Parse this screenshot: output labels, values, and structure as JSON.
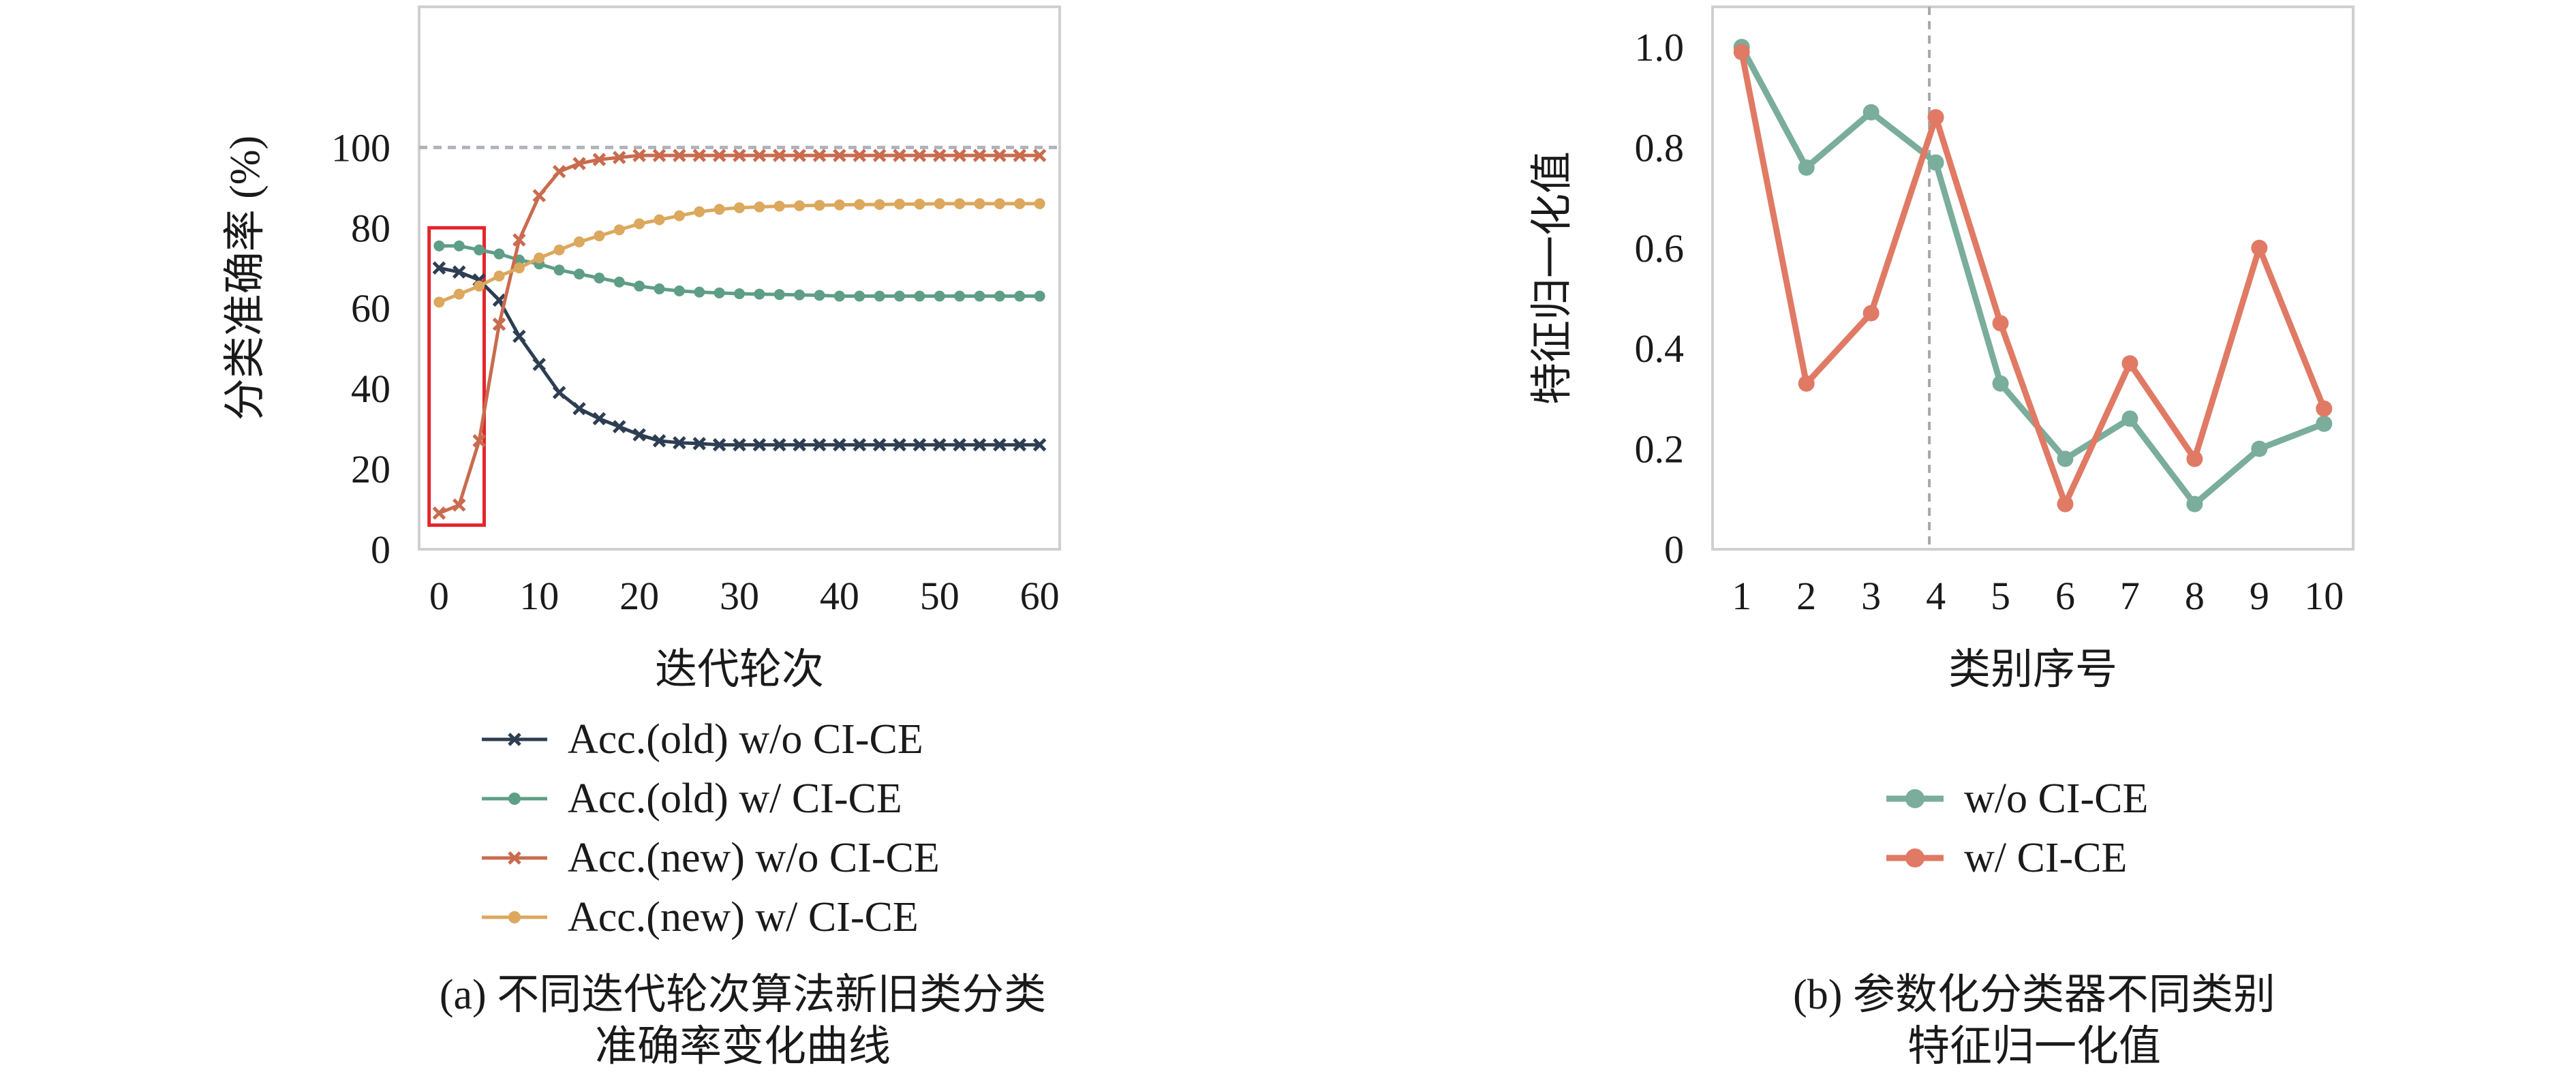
{
  "chart_data": [
    {
      "type": "line",
      "caption_lines": [
        "(a) 不同迭代轮次算法新旧类分类",
        "准确率变化曲线"
      ],
      "xlabel": "迭代轮次",
      "ylabel": "分类准确率 (%)",
      "xlim": [
        -2,
        62
      ],
      "ylim": [
        0,
        135
      ],
      "xticks": [
        0,
        10,
        20,
        30,
        40,
        50,
        60
      ],
      "yticks": [
        0,
        20,
        40,
        60,
        80,
        100
      ],
      "grid": false,
      "reference_line": {
        "y": 100,
        "style": "dashed",
        "color": "#b0b3bb"
      },
      "highlight_box": {
        "x": [
          -1,
          4.5
        ],
        "y": [
          6,
          80
        ],
        "color": "#e3262a"
      },
      "legend_position": "below",
      "x": [
        0,
        2,
        4,
        6,
        8,
        10,
        12,
        14,
        16,
        18,
        20,
        22,
        24,
        26,
        28,
        30,
        32,
        34,
        36,
        38,
        40,
        42,
        44,
        46,
        48,
        50,
        52,
        54,
        56,
        58,
        60
      ],
      "series": [
        {
          "name": "Acc.(old) w/o CI-CE",
          "color": "#2e3e52",
          "marker": "x",
          "values": [
            70,
            69,
            67,
            62,
            53,
            46,
            39,
            35,
            32.5,
            30.5,
            28.5,
            27,
            26.5,
            26.3,
            26,
            26,
            26,
            26,
            26,
            26,
            26,
            26,
            26,
            26,
            26,
            26,
            26,
            26,
            26,
            26,
            26
          ]
        },
        {
          "name": "Acc.(old) w/ CI-CE",
          "color": "#5f9e86",
          "marker": "o",
          "values": [
            75.5,
            75.5,
            74.5,
            73.5,
            72,
            71,
            69.5,
            68.5,
            67.5,
            66.5,
            65.5,
            64.8,
            64.3,
            64,
            63.8,
            63.6,
            63.5,
            63.4,
            63.3,
            63.2,
            63,
            63,
            63,
            63,
            63,
            63,
            63,
            63,
            63,
            63,
            63
          ]
        },
        {
          "name": "Acc.(new) w/o CI-CE",
          "color": "#c96b4e",
          "marker": "x",
          "values": [
            9,
            11,
            27,
            56,
            77,
            88,
            94,
            96,
            97,
            97.5,
            98,
            98,
            98,
            98,
            98,
            98,
            98,
            98,
            98,
            98,
            98,
            98,
            98,
            98,
            98,
            98,
            98,
            98,
            98,
            98,
            98
          ]
        },
        {
          "name": "Acc.(new) w/ CI-CE",
          "color": "#dca85e",
          "marker": "o",
          "values": [
            61.5,
            63.5,
            65.5,
            68,
            70,
            72.5,
            74.5,
            76.5,
            78,
            79.5,
            81,
            82,
            83,
            84,
            84.6,
            85,
            85.2,
            85.4,
            85.5,
            85.6,
            85.7,
            85.8,
            85.8,
            85.9,
            85.9,
            86,
            86,
            86,
            86,
            86,
            86
          ]
        }
      ]
    },
    {
      "type": "line",
      "caption_lines": [
        "(b) 参数化分类器不同类别",
        "特征归一化值"
      ],
      "xlabel": "类别序号",
      "ylabel": "特征归一化值",
      "xlim": [
        0.55,
        10.45
      ],
      "ylim": [
        0,
        1.08
      ],
      "xticks": [
        1,
        2,
        3,
        4,
        5,
        6,
        7,
        8,
        9,
        10
      ],
      "yticks": [
        0,
        0.2,
        0.4,
        0.6,
        0.8,
        1.0
      ],
      "ytick_labels": [
        "0",
        "0.2",
        "0.4",
        "0.6",
        "0.8",
        "1.0"
      ],
      "grid": false,
      "reference_line": {
        "x": 3.9,
        "style": "dashed",
        "color": "#a5a8ad"
      },
      "legend_position": "below",
      "x": [
        1,
        2,
        3,
        4,
        5,
        6,
        7,
        8,
        9,
        10
      ],
      "series": [
        {
          "name": "w/o CI-CE",
          "color": "#7aad9b",
          "marker": "o",
          "values": [
            1.0,
            0.76,
            0.87,
            0.77,
            0.33,
            0.18,
            0.26,
            0.09,
            0.2,
            0.25
          ]
        },
        {
          "name": "w/ CI-CE",
          "color": "#e07a65",
          "marker": "o",
          "values": [
            0.99,
            0.33,
            0.47,
            0.86,
            0.45,
            0.09,
            0.37,
            0.18,
            0.6,
            0.28
          ]
        }
      ]
    }
  ]
}
